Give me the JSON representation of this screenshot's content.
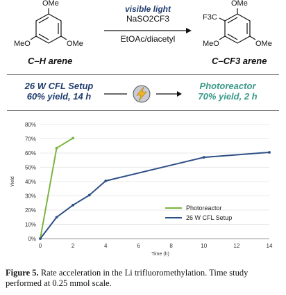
{
  "scheme": {
    "reactant_substituents": {
      "top": "OMe",
      "left": "MeO",
      "right": "OMe"
    },
    "reactant_label": "C–H arene",
    "conditions": {
      "light": "visible light",
      "reagent": "NaSO2CF3",
      "solvent": "EtOAc/diacetyl"
    },
    "product_substituents": {
      "top": "OMe",
      "cf3": "F3C",
      "left": "MeO",
      "right": "OMe"
    },
    "product_label": "C–CF3 arene"
  },
  "setups": {
    "left": {
      "line1": "26 W CFL Setup",
      "line2": "60% yield, 14 h"
    },
    "right": {
      "line1": "Photoreactor",
      "line2": "70% yield, 2 h"
    },
    "icon": "lightning-bolt-icon"
  },
  "colors": {
    "photoreactor": "#7ab53f",
    "cfl": "#2e4f86",
    "accent_navy": "#1f3c6e",
    "accent_teal": "#3a9a8a",
    "bolt": "#f0b323"
  },
  "chart_data": {
    "type": "line",
    "xlabel": "Time (h)",
    "ylabel": "Yield",
    "xlim": [
      0,
      14
    ],
    "ylim": [
      0,
      80
    ],
    "x_ticks": [
      0,
      2,
      4,
      6,
      8,
      10,
      12,
      14
    ],
    "y_ticks": [
      "0%",
      "10%",
      "20%",
      "30%",
      "40%",
      "50%",
      "60%",
      "70%",
      "80%"
    ],
    "legend_position": "bottom-right",
    "series": [
      {
        "name": "Photoreactor",
        "color": "#7ab53f",
        "x": [
          0,
          1,
          2
        ],
        "y": [
          0,
          63.5,
          70.5
        ]
      },
      {
        "name": "26 W CFL Setup",
        "color": "#2e4f86",
        "x": [
          0,
          1,
          2,
          3,
          4,
          10,
          14
        ],
        "y": [
          0,
          15,
          23.5,
          30.5,
          40.5,
          57,
          60.5
        ]
      }
    ]
  },
  "caption": {
    "label": "Figure 5.",
    "text": "Rate acceleration in the Li trifluoromethylation. Time study performed at 0.25 mmol scale."
  }
}
